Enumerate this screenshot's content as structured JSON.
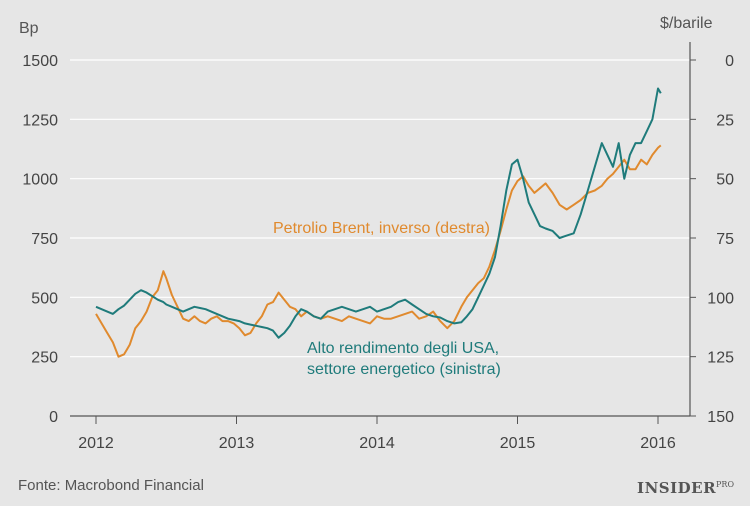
{
  "chart_data": {
    "type": "line",
    "left_axis": {
      "unit_label": "Bp",
      "range": [
        0,
        1500
      ],
      "ticks": [
        "0",
        "250",
        "500",
        "750",
        "1000",
        "1250",
        "1500"
      ]
    },
    "right_axis": {
      "unit_label": "$/barile",
      "inverted": true,
      "range": [
        150,
        0
      ],
      "ticks": [
        "0",
        "25",
        "50",
        "75",
        "100",
        "125",
        "150"
      ]
    },
    "x_axis": {
      "range": [
        2012,
        2016.2
      ],
      "ticks": [
        "2012",
        "2013",
        "2014",
        "2015",
        "2016"
      ]
    },
    "series": [
      {
        "name": "Petrolio Brent, inverso (destra)",
        "axis": "right",
        "color": "#e08a2e",
        "x": [
          2012.0,
          2012.04,
          2012.08,
          2012.12,
          2012.16,
          2012.2,
          2012.24,
          2012.28,
          2012.32,
          2012.36,
          2012.4,
          2012.44,
          2012.48,
          2012.5,
          2012.54,
          2012.58,
          2012.62,
          2012.66,
          2012.7,
          2012.74,
          2012.78,
          2012.82,
          2012.86,
          2012.9,
          2012.94,
          2012.98,
          2013.02,
          2013.06,
          2013.1,
          2013.14,
          2013.18,
          2013.22,
          2013.26,
          2013.3,
          2013.34,
          2013.38,
          2013.42,
          2013.46,
          2013.5,
          2013.55,
          2013.6,
          2013.65,
          2013.7,
          2013.75,
          2013.8,
          2013.85,
          2013.9,
          2013.95,
          2014.0,
          2014.05,
          2014.1,
          2014.15,
          2014.2,
          2014.25,
          2014.3,
          2014.35,
          2014.4,
          2014.45,
          2014.5,
          2014.55,
          2014.6,
          2014.64,
          2014.68,
          2014.72,
          2014.76,
          2014.8,
          2014.84,
          2014.88,
          2014.92,
          2014.96,
          2015.0,
          2015.04,
          2015.08,
          2015.12,
          2015.16,
          2015.2,
          2015.25,
          2015.3,
          2015.35,
          2015.4,
          2015.45,
          2015.5,
          2015.55,
          2015.6,
          2015.64,
          2015.68,
          2015.72,
          2015.76,
          2015.8,
          2015.84,
          2015.88,
          2015.92,
          2015.96,
          2016.0,
          2016.02
        ],
        "values": [
          107,
          111,
          115,
          119,
          125,
          124,
          120,
          113,
          110,
          106,
          100,
          97,
          89,
          92,
          99,
          104,
          109,
          110,
          108,
          110,
          111,
          109,
          108,
          110,
          110,
          111,
          113,
          116,
          115,
          111,
          108,
          103,
          102,
          98,
          101,
          104,
          105,
          108,
          106,
          108,
          109,
          108,
          109,
          110,
          108,
          109,
          110,
          111,
          108,
          109,
          109,
          108,
          107,
          106,
          109,
          108,
          106,
          110,
          113,
          110,
          104,
          100,
          97,
          94,
          92,
          87,
          80,
          72,
          63,
          55,
          51,
          49,
          53,
          56,
          54,
          52,
          56,
          61,
          63,
          61,
          59,
          56,
          55,
          53,
          50,
          48,
          45,
          42,
          46,
          46,
          42,
          44,
          40,
          37,
          36
        ]
      },
      {
        "name": "Alto rendimento degli USA, settore energetico (sinistra)",
        "axis": "left",
        "color": "#1f7b7b",
        "x": [
          2012.0,
          2012.04,
          2012.08,
          2012.12,
          2012.16,
          2012.2,
          2012.24,
          2012.28,
          2012.32,
          2012.36,
          2012.4,
          2012.44,
          2012.48,
          2012.5,
          2012.54,
          2012.58,
          2012.62,
          2012.66,
          2012.7,
          2012.74,
          2012.78,
          2012.82,
          2012.86,
          2012.9,
          2012.94,
          2012.98,
          2013.02,
          2013.06,
          2013.1,
          2013.14,
          2013.18,
          2013.22,
          2013.26,
          2013.3,
          2013.34,
          2013.38,
          2013.42,
          2013.46,
          2013.5,
          2013.55,
          2013.6,
          2013.65,
          2013.7,
          2013.75,
          2013.8,
          2013.85,
          2013.9,
          2013.95,
          2014.0,
          2014.05,
          2014.1,
          2014.15,
          2014.2,
          2014.25,
          2014.3,
          2014.35,
          2014.4,
          2014.45,
          2014.5,
          2014.55,
          2014.6,
          2014.64,
          2014.68,
          2014.72,
          2014.76,
          2014.8,
          2014.84,
          2014.88,
          2014.92,
          2014.96,
          2015.0,
          2015.04,
          2015.08,
          2015.12,
          2015.16,
          2015.2,
          2015.25,
          2015.3,
          2015.35,
          2015.4,
          2015.45,
          2015.5,
          2015.55,
          2015.6,
          2015.64,
          2015.68,
          2015.72,
          2015.76,
          2015.8,
          2015.84,
          2015.88,
          2015.92,
          2015.96,
          2016.0,
          2016.02
        ],
        "values": [
          460,
          450,
          440,
          430,
          450,
          465,
          490,
          515,
          530,
          520,
          505,
          490,
          480,
          470,
          460,
          450,
          440,
          450,
          460,
          455,
          450,
          440,
          430,
          420,
          410,
          405,
          400,
          390,
          385,
          380,
          375,
          370,
          360,
          330,
          350,
          380,
          420,
          450,
          440,
          420,
          410,
          440,
          450,
          460,
          450,
          440,
          450,
          460,
          440,
          450,
          460,
          480,
          490,
          470,
          450,
          430,
          420,
          415,
          400,
          390,
          395,
          420,
          450,
          500,
          550,
          600,
          670,
          800,
          950,
          1060,
          1080,
          1000,
          900,
          850,
          800,
          790,
          780,
          750,
          760,
          770,
          850,
          950,
          1050,
          1150,
          1100,
          1050,
          1150,
          1000,
          1100,
          1150,
          1150,
          1200,
          1250,
          1380,
          1360
        ]
      }
    ],
    "annotations": {
      "brent_label": "Petrolio Brent, inverso (destra)",
      "hy_label_line1": "Alto rendimento degli USA,",
      "hy_label_line2": "settore energetico (sinistra)"
    }
  },
  "footer": {
    "source": "Fonte: Macrobond Financial",
    "logo_main": "INSIDER",
    "logo_sup": "PRO"
  }
}
